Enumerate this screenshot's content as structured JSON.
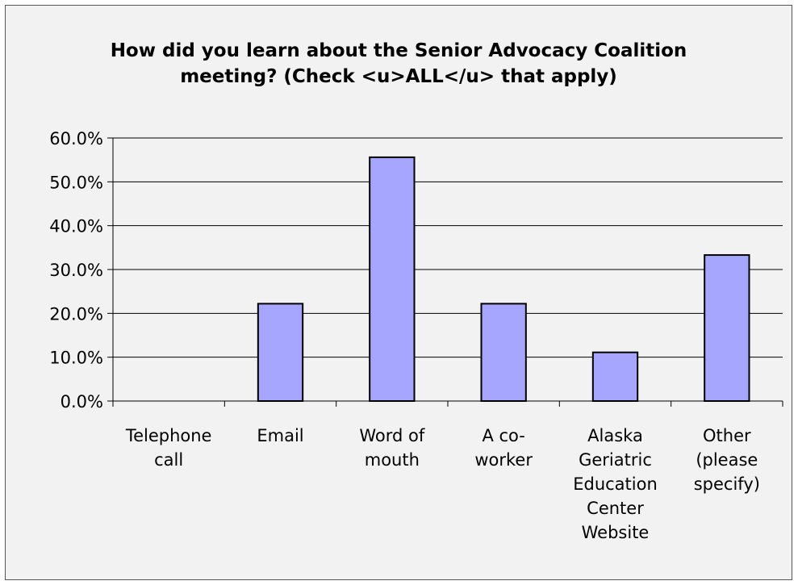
{
  "chart_data": {
    "type": "bar",
    "title": "How did you learn about the Senior Advocacy Coalition meeting? (Check <u>ALL</u> that apply)",
    "title_lines": [
      "How did you learn about the Senior Advocacy Coalition",
      "meeting? (Check <u>ALL</u> that apply)"
    ],
    "categories": [
      "Telephone call",
      "Email",
      "Word of mouth",
      "A co-worker",
      "Alaska Geriatric Education Center Website",
      "Other (please specify)"
    ],
    "category_label_lines": [
      [
        "Telephone",
        "call"
      ],
      [
        "Email"
      ],
      [
        "Word of",
        "mouth"
      ],
      [
        "A co-",
        "worker"
      ],
      [
        "Alaska",
        "Geriatric",
        "Education",
        "Center",
        "Website"
      ],
      [
        "Other",
        "(please",
        "specify)"
      ]
    ],
    "values": [
      0.0,
      22.2,
      55.6,
      22.2,
      11.1,
      33.3
    ],
    "ylim": [
      0,
      60
    ],
    "yticks": [
      0,
      10,
      20,
      30,
      40,
      50,
      60
    ],
    "ytick_labels": [
      "0.0%",
      "10.0%",
      "20.0%",
      "30.0%",
      "40.0%",
      "50.0%",
      "60.0%"
    ],
    "xlabel": "",
    "ylabel": "",
    "grid": true,
    "legend": "none",
    "colors": {
      "bar_fill": "#a6a6ff",
      "bar_stroke": "#000000",
      "background": "#f2f2f2",
      "gridline": "#000000"
    }
  }
}
